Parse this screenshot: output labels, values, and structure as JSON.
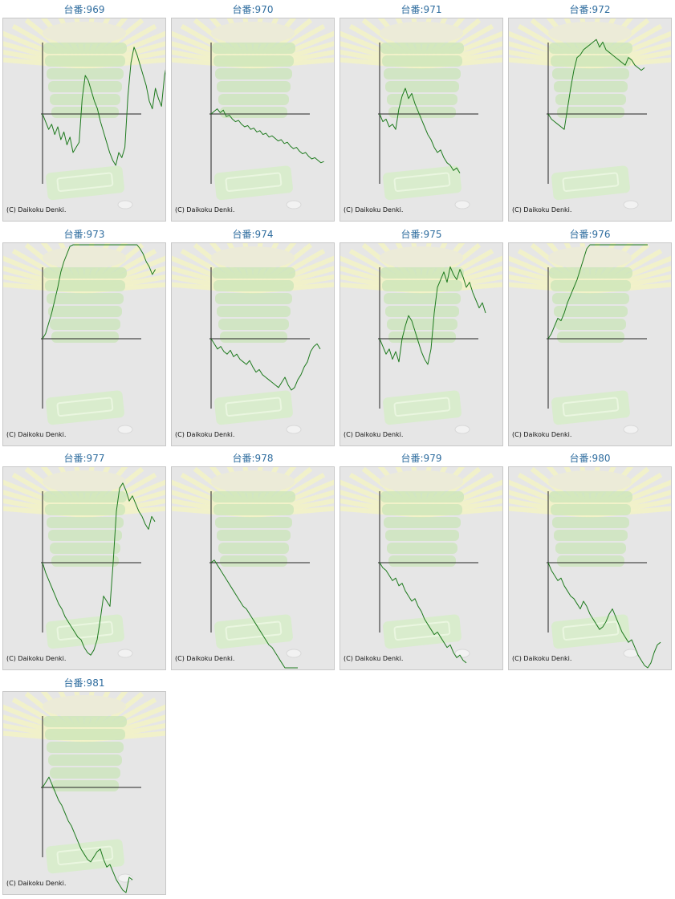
{
  "colors": {
    "title": "#2f6d9f",
    "line": "#1e7a1e",
    "axis": "#222222",
    "panel_bg": "#e6e6e6",
    "watermark": "#c9e4b8"
  },
  "watermark_icon": "pachinko-machine-watermark-icon",
  "chart_data": [
    {
      "type": "line",
      "title": "台番:969",
      "copyright": "(C) Daikoku Denki.",
      "y": [
        0,
        -6,
        -12,
        -8,
        -16,
        -10,
        -20,
        -14,
        -24,
        -18,
        -30,
        -26,
        -22,
        12,
        30,
        26,
        18,
        10,
        4,
        -6,
        -14,
        -22,
        -30,
        -36,
        -40,
        -30,
        -34,
        -26,
        14,
        40,
        52,
        46,
        38,
        30,
        22,
        10,
        4,
        20,
        12,
        6,
        30,
        42
      ]
    },
    {
      "type": "line",
      "title": "台番:970",
      "copyright": "(C) Daikoku Denki.",
      "y": [
        0,
        2,
        4,
        1,
        3,
        -2,
        -1,
        -4,
        -6,
        -5,
        -8,
        -10,
        -9,
        -12,
        -11,
        -14,
        -13,
        -16,
        -15,
        -18,
        -17,
        -19,
        -21,
        -20,
        -23,
        -22,
        -25,
        -27,
        -26,
        -29,
        -31,
        -30,
        -33,
        -35,
        -34,
        -36,
        -38,
        -37
      ]
    },
    {
      "type": "line",
      "title": "台番:971",
      "copyright": "(C) Daikoku Denki.",
      "y": [
        0,
        -6,
        -4,
        -10,
        -8,
        -12,
        4,
        14,
        20,
        12,
        16,
        8,
        2,
        -4,
        -10,
        -16,
        -20,
        -26,
        -30,
        -28,
        -34,
        -38,
        -40,
        -44,
        -42,
        -46
      ]
    },
    {
      "type": "line",
      "title": "台番:972",
      "copyright": "(C) Daikoku Denki.",
      "y": [
        0,
        -4,
        -6,
        -8,
        -10,
        -12,
        4,
        20,
        34,
        44,
        46,
        50,
        52,
        54,
        56,
        58,
        52,
        56,
        50,
        48,
        46,
        44,
        42,
        40,
        38,
        44,
        42,
        38,
        36,
        34,
        36
      ]
    },
    {
      "type": "line",
      "title": "台番:973",
      "copyright": "(C) Daikoku Denki.",
      "y": [
        0,
        4,
        12,
        20,
        30,
        40,
        52,
        60,
        66,
        72,
        78,
        84,
        90,
        96,
        102,
        110,
        116,
        122,
        128,
        134,
        140,
        146,
        150,
        120,
        98,
        94,
        92,
        96,
        90,
        86,
        82,
        76,
        70,
        66,
        60,
        56,
        50,
        54
      ]
    },
    {
      "type": "line",
      "title": "台番:974",
      "copyright": "(C) Daikoku Denki.",
      "y": [
        0,
        -4,
        -8,
        -6,
        -10,
        -12,
        -9,
        -14,
        -12,
        -16,
        -18,
        -20,
        -17,
        -22,
        -26,
        -24,
        -28,
        -30,
        -32,
        -34,
        -36,
        -38,
        -34,
        -30,
        -36,
        -40,
        -38,
        -32,
        -28,
        -22,
        -18,
        -10,
        -6,
        -4,
        -8
      ]
    },
    {
      "type": "line",
      "title": "台番:975",
      "copyright": "(C) Daikoku Denki.",
      "y": [
        0,
        -6,
        -12,
        -8,
        -16,
        -10,
        -18,
        0,
        10,
        18,
        14,
        6,
        -2,
        -10,
        -16,
        -20,
        -8,
        20,
        40,
        46,
        52,
        44,
        56,
        50,
        46,
        54,
        48,
        40,
        44,
        36,
        30,
        24,
        28,
        20
      ]
    },
    {
      "type": "line",
      "title": "台番:976",
      "copyright": "(C) Daikoku Denki.",
      "y": [
        0,
        4,
        10,
        16,
        14,
        20,
        28,
        34,
        40,
        46,
        54,
        62,
        70,
        76,
        84,
        90,
        96,
        100,
        106,
        112,
        118,
        124,
        130,
        136,
        140,
        146,
        152,
        158,
        164,
        170,
        176,
        180
      ]
    },
    {
      "type": "line",
      "title": "台番:977",
      "copyright": "(C) Daikoku Denki.",
      "y": [
        0,
        -8,
        -14,
        -20,
        -26,
        -32,
        -36,
        -42,
        -46,
        -50,
        -54,
        -58,
        -60,
        -66,
        -70,
        -72,
        -68,
        -60,
        -44,
        -26,
        -30,
        -34,
        0,
        40,
        58,
        62,
        56,
        48,
        52,
        46,
        40,
        36,
        30,
        26,
        36,
        32
      ]
    },
    {
      "type": "line",
      "title": "台番:978",
      "copyright": "(C) Daikoku Denki.",
      "y": [
        0,
        2,
        -2,
        -6,
        -10,
        -14,
        -18,
        -22,
        -26,
        -30,
        -34,
        -36,
        -40,
        -44,
        -48,
        -52,
        -56,
        -60,
        -64,
        -66,
        -70,
        -74,
        -78,
        -82,
        -84,
        -88,
        -92,
        -96
      ]
    },
    {
      "type": "line",
      "title": "台番:979",
      "copyright": "(C) Daikoku Denki.",
      "y": [
        0,
        -4,
        -6,
        -10,
        -14,
        -12,
        -18,
        -16,
        -22,
        -26,
        -30,
        -28,
        -34,
        -38,
        -44,
        -48,
        -52,
        -56,
        -54,
        -58,
        -62,
        -66,
        -64,
        -70,
        -74,
        -72,
        -76,
        -78
      ]
    },
    {
      "type": "line",
      "title": "台番:980",
      "copyright": "(C) Daikoku Denki.",
      "y": [
        0,
        -6,
        -10,
        -14,
        -12,
        -18,
        -22,
        -26,
        -28,
        -32,
        -36,
        -30,
        -34,
        -40,
        -44,
        -48,
        -52,
        -50,
        -46,
        -40,
        -36,
        -42,
        -48,
        -54,
        -58,
        -62,
        -60,
        -66,
        -72,
        -76,
        -80,
        -84,
        -78,
        -70,
        -64,
        -62
      ]
    },
    {
      "type": "line",
      "title": "台番:981",
      "copyright": "(C) Daikoku Denki.",
      "y": [
        0,
        4,
        8,
        2,
        -4,
        -10,
        -14,
        -20,
        -26,
        -30,
        -36,
        -42,
        -48,
        -52,
        -56,
        -58,
        -54,
        -50,
        -48,
        -56,
        -62,
        -60,
        -66,
        -72,
        -76,
        -80,
        -84,
        -70,
        -72
      ]
    }
  ]
}
